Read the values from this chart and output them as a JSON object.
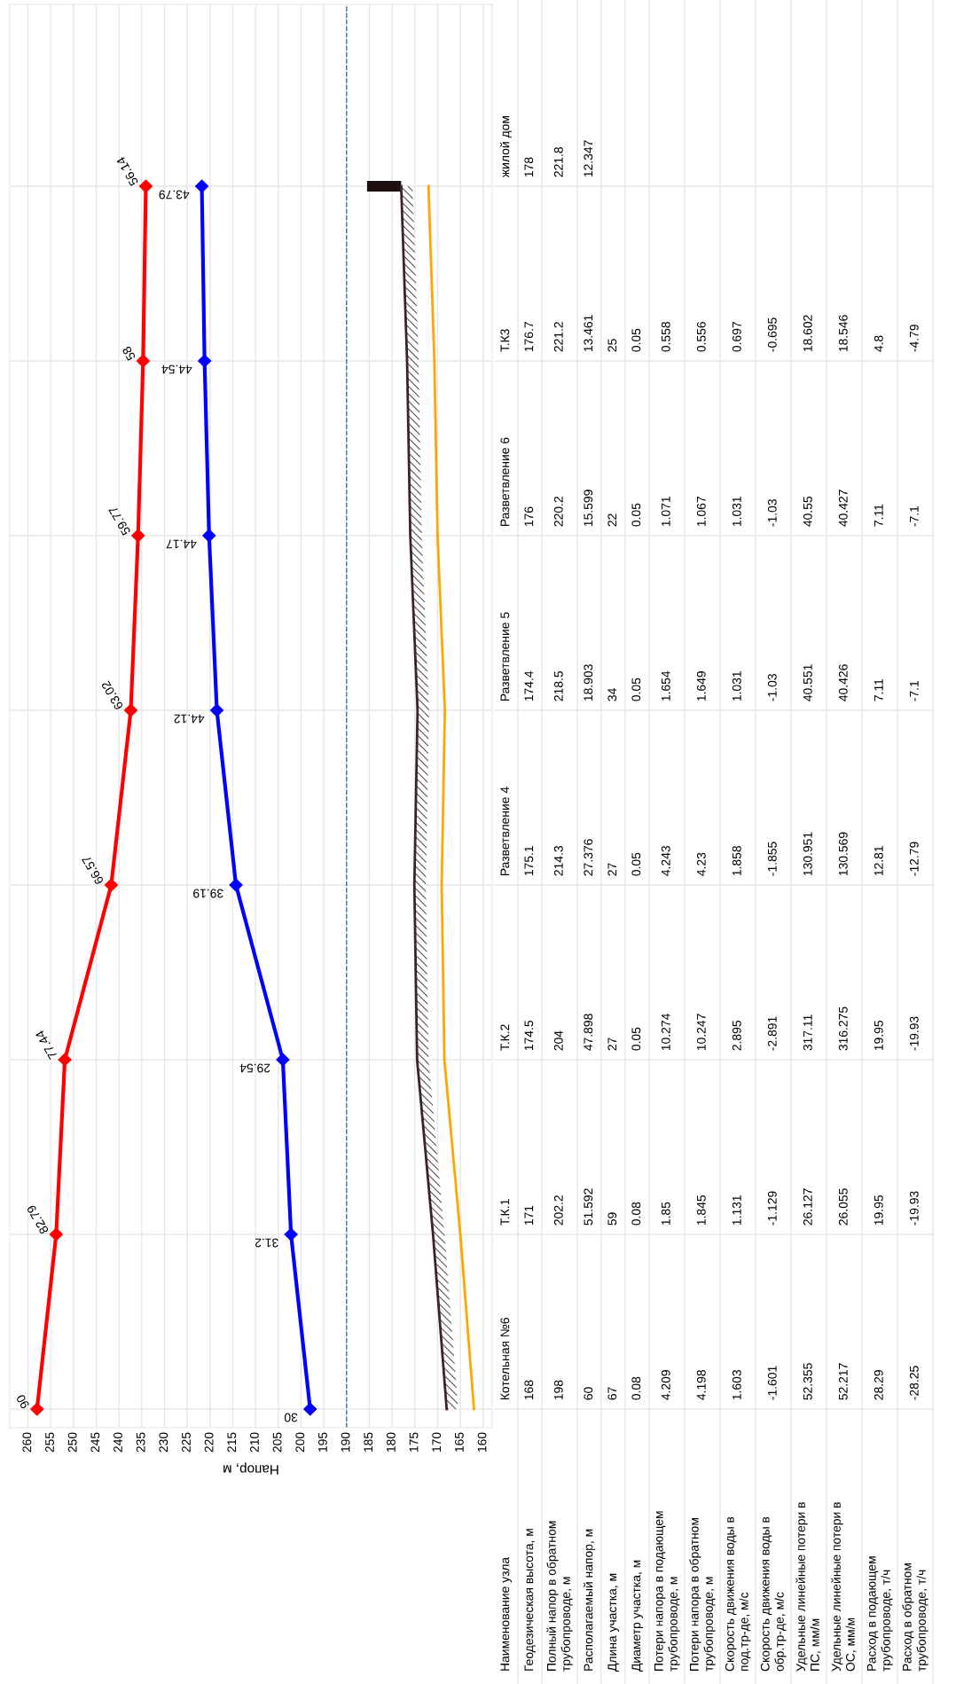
{
  "chart_data": [
    {
      "type": "line",
      "orientation": "horizontal",
      "categories": [
        null,
        null,
        null,
        null,
        null,
        null,
        null,
        null
      ],
      "xlabel": "Напор, м",
      "xlim": [
        264,
        158
      ],
      "xticks": [
        260,
        255,
        250,
        245,
        240,
        235,
        230,
        225,
        220,
        215,
        210,
        205,
        200,
        195,
        190,
        185,
        180,
        175,
        170,
        165,
        160
      ],
      "grid": true,
      "tick_labels": "x",
      "ref_lines": [
        {
          "axis": "x",
          "value": 190,
          "color": "#2e75b6",
          "line_style": "dashed"
        }
      ],
      "series": [
        {
          "type": "line",
          "color": "#ff0000",
          "marker": "diamond",
          "line_style": "solid",
          "values": [
            234.1,
            234.7,
            235.8,
            237.4,
            241.7,
            251.9,
            253.8,
            258
          ]
        },
        {
          "type": "line",
          "color": "#0000ff",
          "marker": "diamond",
          "line_style": "solid",
          "values": [
            221.8,
            221.2,
            220.2,
            218.5,
            214.3,
            204,
            202.2,
            198
          ]
        },
        {
          "type": "line",
          "color": "#3b2424",
          "marker": "none",
          "line_style": "solid",
          "values": [
            178,
            176.7,
            176,
            174.4,
            175.1,
            174.5,
            171,
            168
          ]
        },
        {
          "type": "line",
          "color": "#ffa500",
          "marker": "none",
          "line_style": "solid",
          "values": [
            172,
            170.7,
            170,
            168.4,
            169.1,
            168.5,
            165,
            162
          ]
        },
        {
          "type": "bar",
          "color": "#1e1010",
          "values": [
            7.5,
            null,
            null,
            null,
            null,
            null,
            null,
            null
          ],
          "base": [
            178,
            null,
            null,
            null,
            null,
            null,
            null,
            null
          ]
        }
      ],
      "annotations": [
        "56.14",
        "58",
        "59.77",
        "63.02",
        "66.57",
        "77.44",
        "82.79",
        "90",
        "43.79",
        "44.54",
        "44.17",
        "44.12",
        "39.19",
        "29.54",
        "31.2",
        "30"
      ]
    },
    {
      "type": "other",
      "ylabel": "Наименование узла",
      "categories": [
        "жилой дом",
        "Т.К3",
        "Разветвление 6",
        "Разветвление 5",
        "Разветвление 4",
        "Т.К.2",
        "Т.К.1",
        "Котельная №6"
      ],
      "y_categories": [
        "Геодезическая высота, м",
        "Полный напор в обратном\nтрубопроводе, м",
        "Располагаемый напор, м",
        "Длина участка, м",
        "Диаметр участка, м",
        "Потери напора в подающем\nтрубопроводе, м",
        "Потери напора в обратном\nтрубопроводе, м",
        "Скорость движения воды в\nпод.тр-де, м/с",
        "Скорость движения воды в\nобр.тр-де, м/с",
        "Удельные линейные потери в\nПС, мм/м",
        "Удельные линейные потери в\nОС, мм/м",
        "Расход в подающем\nтрубопроводе, т/ч",
        "Расход в обратном\nтрубопроводе, т/ч"
      ],
      "cell_labels": [
        [
          "178",
          "176.7",
          "176",
          "174.4",
          "175.1",
          "174.5",
          "171",
          "168"
        ],
        [
          "221.8",
          "221.2",
          "220.2",
          "218.5",
          "214.3",
          "204",
          "202.2",
          "198"
        ],
        [
          "12.347",
          "13.461",
          "15.599",
          "18.903",
          "27.376",
          "47.898",
          "51.592",
          "60"
        ],
        [
          null,
          "25",
          "22",
          "34",
          "27",
          "27",
          "59",
          "67"
        ],
        [
          null,
          "0.05",
          "0.05",
          "0.05",
          "0.05",
          "0.05",
          "0.08",
          "0.08"
        ],
        [
          null,
          "0.558",
          "1.071",
          "1.654",
          "4.243",
          "10.274",
          "1.85",
          "4.209"
        ],
        [
          null,
          "0.556",
          "1.067",
          "1.649",
          "4.23",
          "10.247",
          "1.845",
          "4.198"
        ],
        [
          null,
          "0.697",
          "1.031",
          "1.031",
          "1.858",
          "2.895",
          "1.131",
          "1.603"
        ],
        [
          null,
          "-0.695",
          "-1.03",
          "-1.03",
          "-1.855",
          "-2.891",
          "-1.129",
          "-1.601"
        ],
        [
          null,
          "18.602",
          "40.55",
          "40.551",
          "130.951",
          "317.11",
          "26.127",
          "52.355"
        ],
        [
          null,
          "18.546",
          "40.427",
          "40.426",
          "130.569",
          "316.275",
          "26.055",
          "52.217"
        ],
        [
          null,
          "4.8",
          "7.11",
          "7.11",
          "12.81",
          "19.95",
          "19.95",
          "28.29"
        ],
        [
          null,
          "-4.79",
          "-7.1",
          "-7.1",
          "-12.79",
          "-19.93",
          "-19.93",
          "-28.25"
        ]
      ]
    }
  ]
}
